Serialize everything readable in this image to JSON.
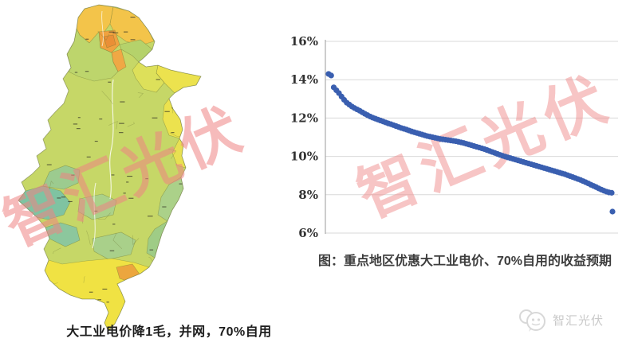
{
  "watermarks": {
    "text": "智汇光伏",
    "color_map": "rgba(238,132,132,0.55)",
    "color_chart": "rgba(240,140,140,0.50)"
  },
  "map_panel": {
    "caption": "大工业电价降1毛，并网，70%自用",
    "palette": {
      "base": "#c6d767",
      "belt_green": "#bdd56c",
      "mid_green": "#b5d26b",
      "light_green": "#abd189",
      "pale_green": "#a9d08a",
      "se_green": "#9fcc86",
      "teal": "#7fc3a2",
      "light_teal": "#9ccb8f",
      "low_teal": "#8cc79d",
      "yellow": "#ece24e",
      "shandong_yellow": "#dde05a",
      "right_yellow": "#e8e052",
      "bright_yellow": "#f0e243",
      "yellow_orange": "#f3c44a",
      "orange": "#f0a23f",
      "deep_orange": "#ea8f36",
      "tianjin_orange": "#f0a845",
      "prd_orange": "#eca63e"
    }
  },
  "chart_panel": {
    "caption": "图：重点地区优惠大工业电价、70%自用的收益预期"
  },
  "chart_data": {
    "type": "scatter",
    "title": "",
    "xlabel": "",
    "ylabel": "",
    "ylim": [
      6,
      16
    ],
    "grid": true,
    "legend_position": "none",
    "point_color": "#3a5fb0",
    "axis_color": "#9b9b9b",
    "grid_color": "#d9d9d9",
    "tick_label_color": "#333333",
    "y_ticks": [
      {
        "label": "16%",
        "value": 16
      },
      {
        "label": "14%",
        "value": 14
      },
      {
        "label": "12%",
        "value": 12
      },
      {
        "label": "10%",
        "value": 10
      },
      {
        "label": "8%",
        "value": 8
      },
      {
        "label": "6%",
        "value": 6
      }
    ],
    "values": [
      14.3,
      14.22,
      13.6,
      13.45,
      13.3,
      13.12,
      12.95,
      12.8,
      12.7,
      12.6,
      12.52,
      12.45,
      12.38,
      12.3,
      12.22,
      12.15,
      12.08,
      12.02,
      11.97,
      11.92,
      11.87,
      11.82,
      11.77,
      11.72,
      11.68,
      11.63,
      11.58,
      11.53,
      11.48,
      11.44,
      11.4,
      11.35,
      11.3,
      11.26,
      11.22,
      11.18,
      11.14,
      11.1,
      11.06,
      11.03,
      11.0,
      10.97,
      10.94,
      10.91,
      10.89,
      10.87,
      10.85,
      10.83,
      10.81,
      10.79,
      10.76,
      10.73,
      10.7,
      10.66,
      10.62,
      10.58,
      10.54,
      10.5,
      10.46,
      10.42,
      10.38,
      10.33,
      10.28,
      10.23,
      10.18,
      10.13,
      10.08,
      10.03,
      9.99,
      9.95,
      9.91,
      9.87,
      9.83,
      9.79,
      9.75,
      9.71,
      9.67,
      9.63,
      9.59,
      9.55,
      9.51,
      9.47,
      9.43,
      9.39,
      9.35,
      9.31,
      9.27,
      9.23,
      9.19,
      9.15,
      9.11,
      9.07,
      9.02,
      8.97,
      8.92,
      8.87,
      8.82,
      8.77,
      8.71,
      8.65,
      8.59,
      8.52,
      8.46,
      8.4,
      8.33,
      8.27,
      8.21,
      8.16,
      8.12,
      8.1
    ],
    "outlier_value": 7.12
  },
  "footer": {
    "brand": "智汇光伏"
  }
}
